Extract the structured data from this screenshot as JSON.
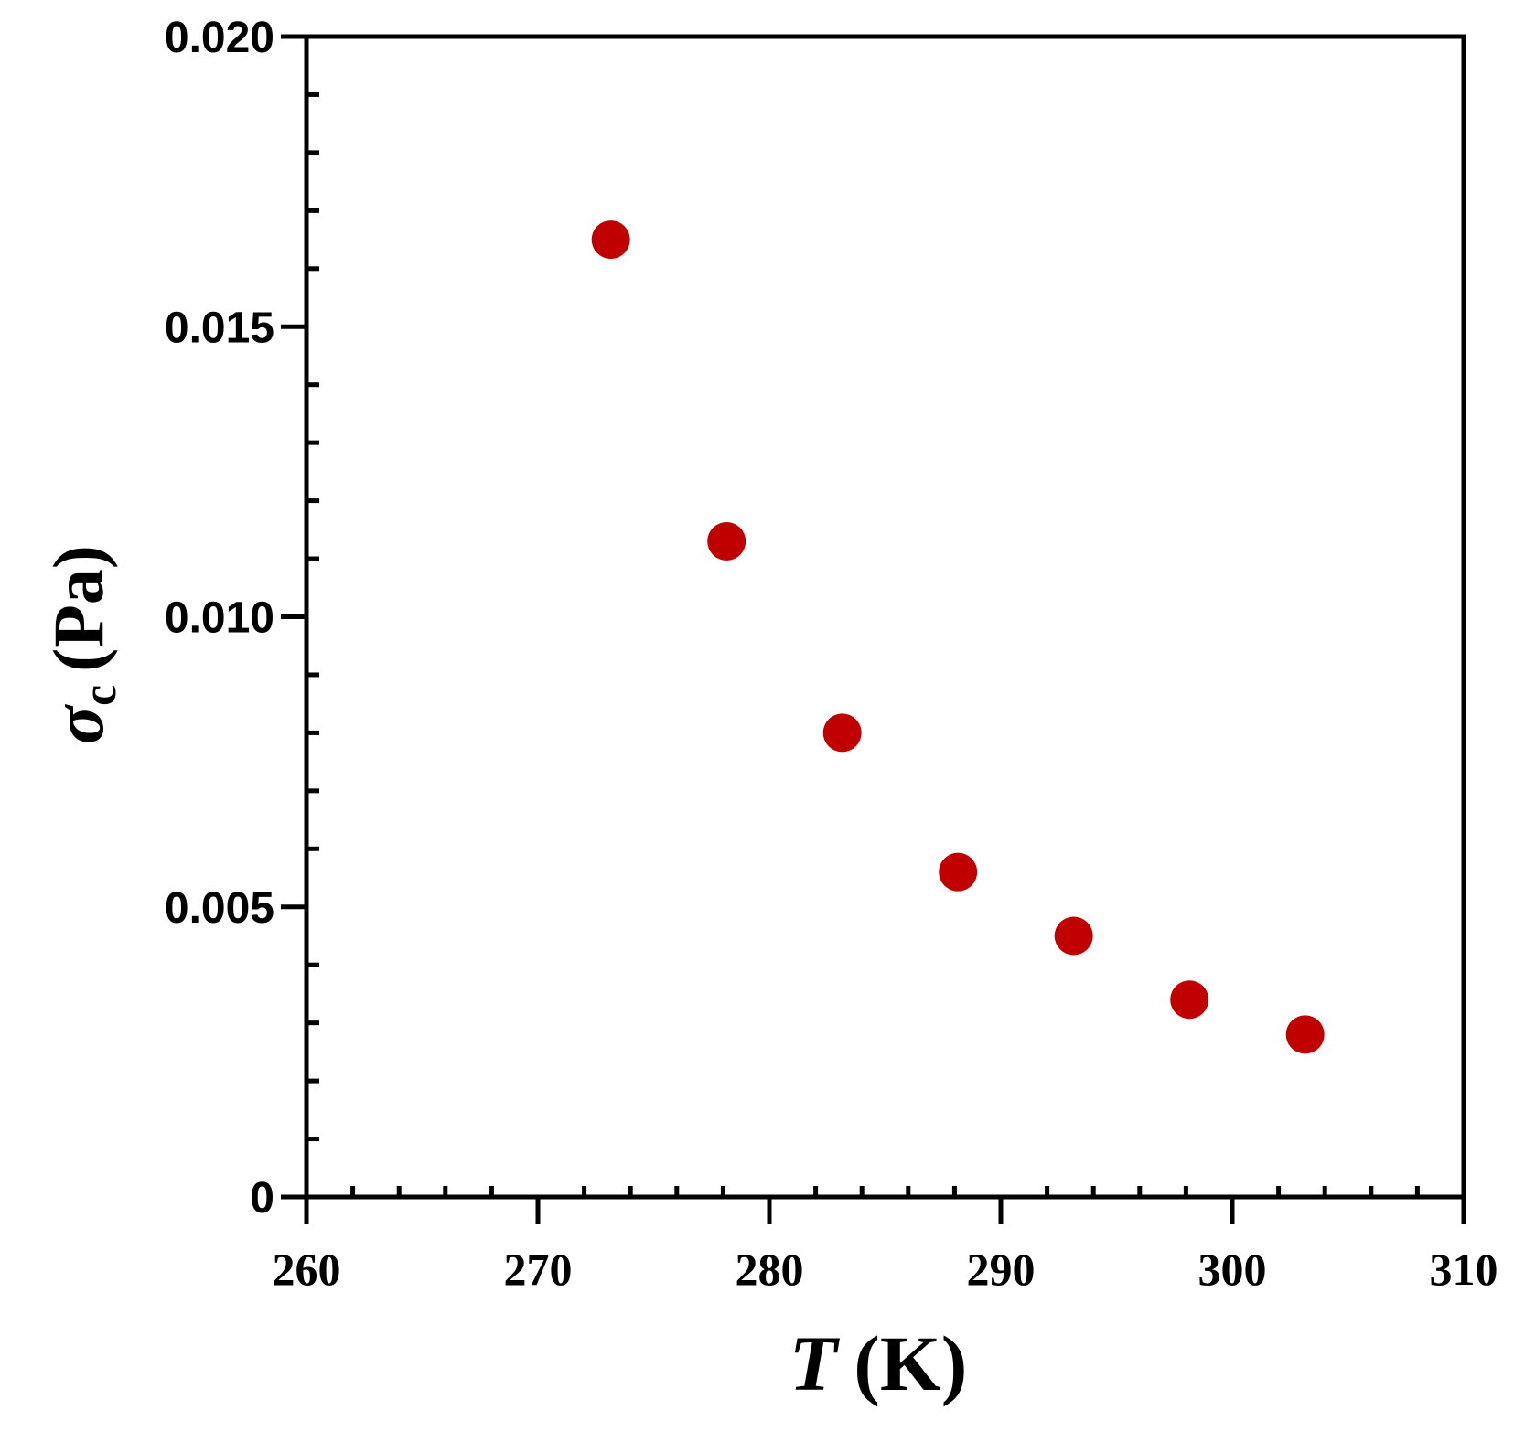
{
  "chart_data": {
    "type": "scatter",
    "xlabel": {
      "symbol": "T",
      "unit": "(K)"
    },
    "ylabel": {
      "symbol": "σ",
      "subscript": "c",
      "unit": "(Pa)"
    },
    "xlim": [
      260,
      310
    ],
    "ylim": [
      0,
      0.02
    ],
    "xticks": [
      "260",
      "270",
      "280",
      "290",
      "300",
      "310"
    ],
    "yticks": [
      "0",
      "0.005",
      "0.010",
      "0.015",
      "0.020"
    ],
    "grid": false,
    "marker_color": "#c00000",
    "series": [
      {
        "x": [
          273.15,
          278.15,
          283.15,
          288.15,
          293.15,
          298.15,
          303.15
        ],
        "y": [
          0.0165,
          0.0113,
          0.008,
          0.0056,
          0.0045,
          0.0034,
          0.0028
        ]
      }
    ]
  }
}
